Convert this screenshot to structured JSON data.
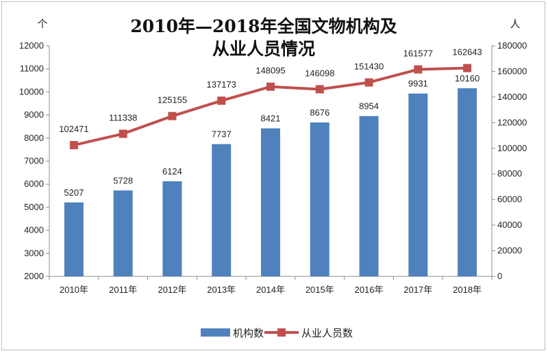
{
  "chart_data": {
    "type": "bar",
    "title_line1": "2010年—2018年全国文物机构及",
    "title_line2": "从业人员情况",
    "categories": [
      "2010年",
      "2011年",
      "2012年",
      "2013年",
      "2014年",
      "2015年",
      "2016年",
      "2017年",
      "2018年"
    ],
    "series": [
      {
        "name": "机构数",
        "type": "bar",
        "axis": "left",
        "color": "#4f81bd",
        "values": [
          5207,
          5728,
          6124,
          7737,
          8421,
          8676,
          8954,
          9931,
          10160
        ]
      },
      {
        "name": "从业人员数",
        "type": "line",
        "axis": "right",
        "color": "#c0504d",
        "values": [
          102471,
          111338,
          125155,
          137173,
          148095,
          146098,
          151430,
          161577,
          162643
        ]
      }
    ],
    "left_axis": {
      "unit": "个",
      "ylim": [
        2000,
        12000
      ],
      "ticks": [
        "2000",
        "3000",
        "4000",
        "5000",
        "6000",
        "7000",
        "8000",
        "9000",
        "10000",
        "11000",
        "12000"
      ]
    },
    "right_axis": {
      "unit": "人",
      "ylim": [
        0,
        180000
      ],
      "ticks": [
        "0",
        "20000",
        "40000",
        "60000",
        "80000",
        "100000",
        "120000",
        "140000",
        "160000",
        "180000"
      ]
    },
    "grid": false,
    "legend_position": "bottom"
  }
}
